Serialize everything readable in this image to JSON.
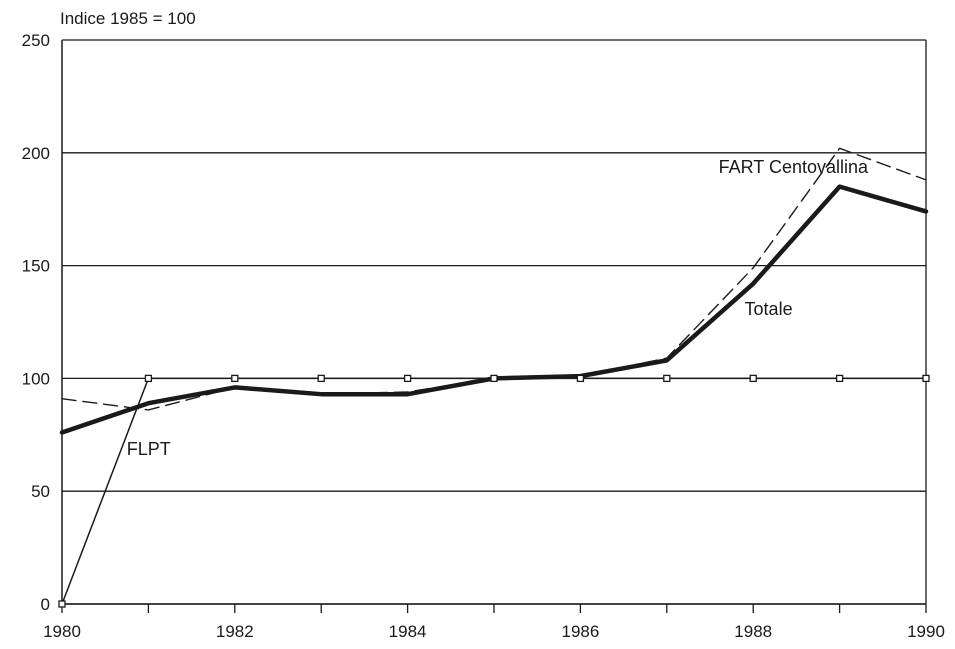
{
  "chart_data": {
    "type": "line",
    "title": "",
    "xlabel": "",
    "ylabel": "Indice 1985 = 100",
    "xlim": [
      1980,
      1990
    ],
    "ylim": [
      0,
      250
    ],
    "grid": "horizontal",
    "x_ticks": [
      "1980",
      "1982",
      "1984",
      "1986",
      "1988",
      "1990"
    ],
    "y_ticks": [
      "0",
      "50",
      "100",
      "150",
      "200",
      "250"
    ],
    "x": [
      1980,
      1981,
      1982,
      1983,
      1984,
      1985,
      1986,
      1987,
      1988,
      1989,
      1990
    ],
    "series": [
      {
        "name": "Totale",
        "style": "thick-solid",
        "color": "#1a1a1a",
        "values": [
          76,
          89,
          96,
          93,
          93,
          100,
          101,
          108,
          142,
          185,
          174
        ]
      },
      {
        "name": "FART Centovallina",
        "style": "dashed",
        "color": "#1a1a1a",
        "values": [
          91,
          86,
          96,
          93,
          94,
          100,
          101,
          109,
          149,
          202,
          188
        ]
      },
      {
        "name": "FLPT",
        "style": "thin-solid-square-markers",
        "color": "#1a1a1a",
        "values": [
          0,
          100,
          100,
          100,
          100,
          100,
          100,
          100,
          100,
          100,
          100
        ]
      }
    ],
    "annotations": [
      {
        "text": "FART Centovallina",
        "series": "FART Centovallina",
        "near_x": 1987.6,
        "near_y": 191
      },
      {
        "text": "Totale",
        "series": "Totale",
        "near_x": 1987.9,
        "near_y": 128
      },
      {
        "text": "FLPT",
        "series": "FLPT",
        "near_x": 1980.75,
        "near_y": 66
      }
    ]
  }
}
